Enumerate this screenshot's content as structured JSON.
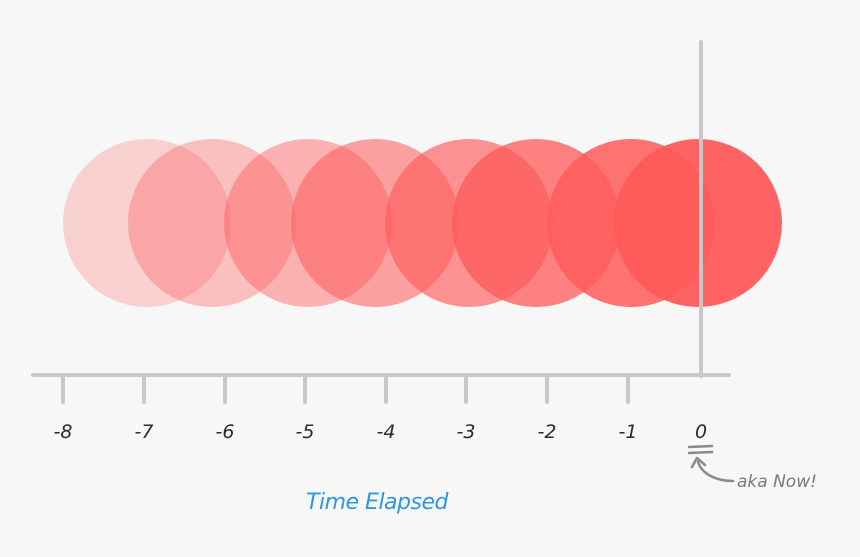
{
  "chart_data": {
    "type": "scatter",
    "xlabel": "Time Elapsed",
    "ticks": [
      "-8",
      "-7",
      "-6",
      "-5",
      "-4",
      "-3",
      "-2",
      "-1",
      "0"
    ],
    "circle_opacity": [
      0.25,
      0.35,
      0.45,
      0.55,
      0.65,
      0.75,
      0.85,
      0.95
    ],
    "circle_color": "#ff5a5a",
    "axis_color": "#c8c8c8",
    "annotation": "aka Now!",
    "annotation_color": "#7a7a7a",
    "xlabel_color": "#2b98e0"
  }
}
